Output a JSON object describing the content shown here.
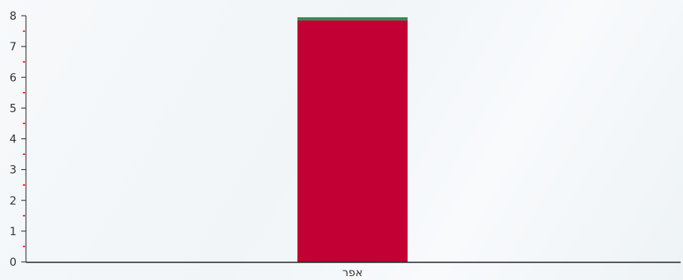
{
  "chart_data": {
    "type": "bar",
    "stacked": true,
    "categories": [
      "אפר"
    ],
    "series": [
      {
        "values": [
          7.85
        ],
        "color": "#c20033"
      },
      {
        "values": [
          0.1
        ],
        "color": "#2e8b57"
      }
    ],
    "ylim": [
      0,
      8
    ],
    "yticks": [
      "0",
      "1",
      "2",
      "3",
      "4",
      "5",
      "6",
      "7",
      "8"
    ],
    "minor_tick_color": "#ff0000",
    "axis_color": "#222222",
    "grid": false,
    "title": "",
    "xlabel": "",
    "ylabel": ""
  }
}
